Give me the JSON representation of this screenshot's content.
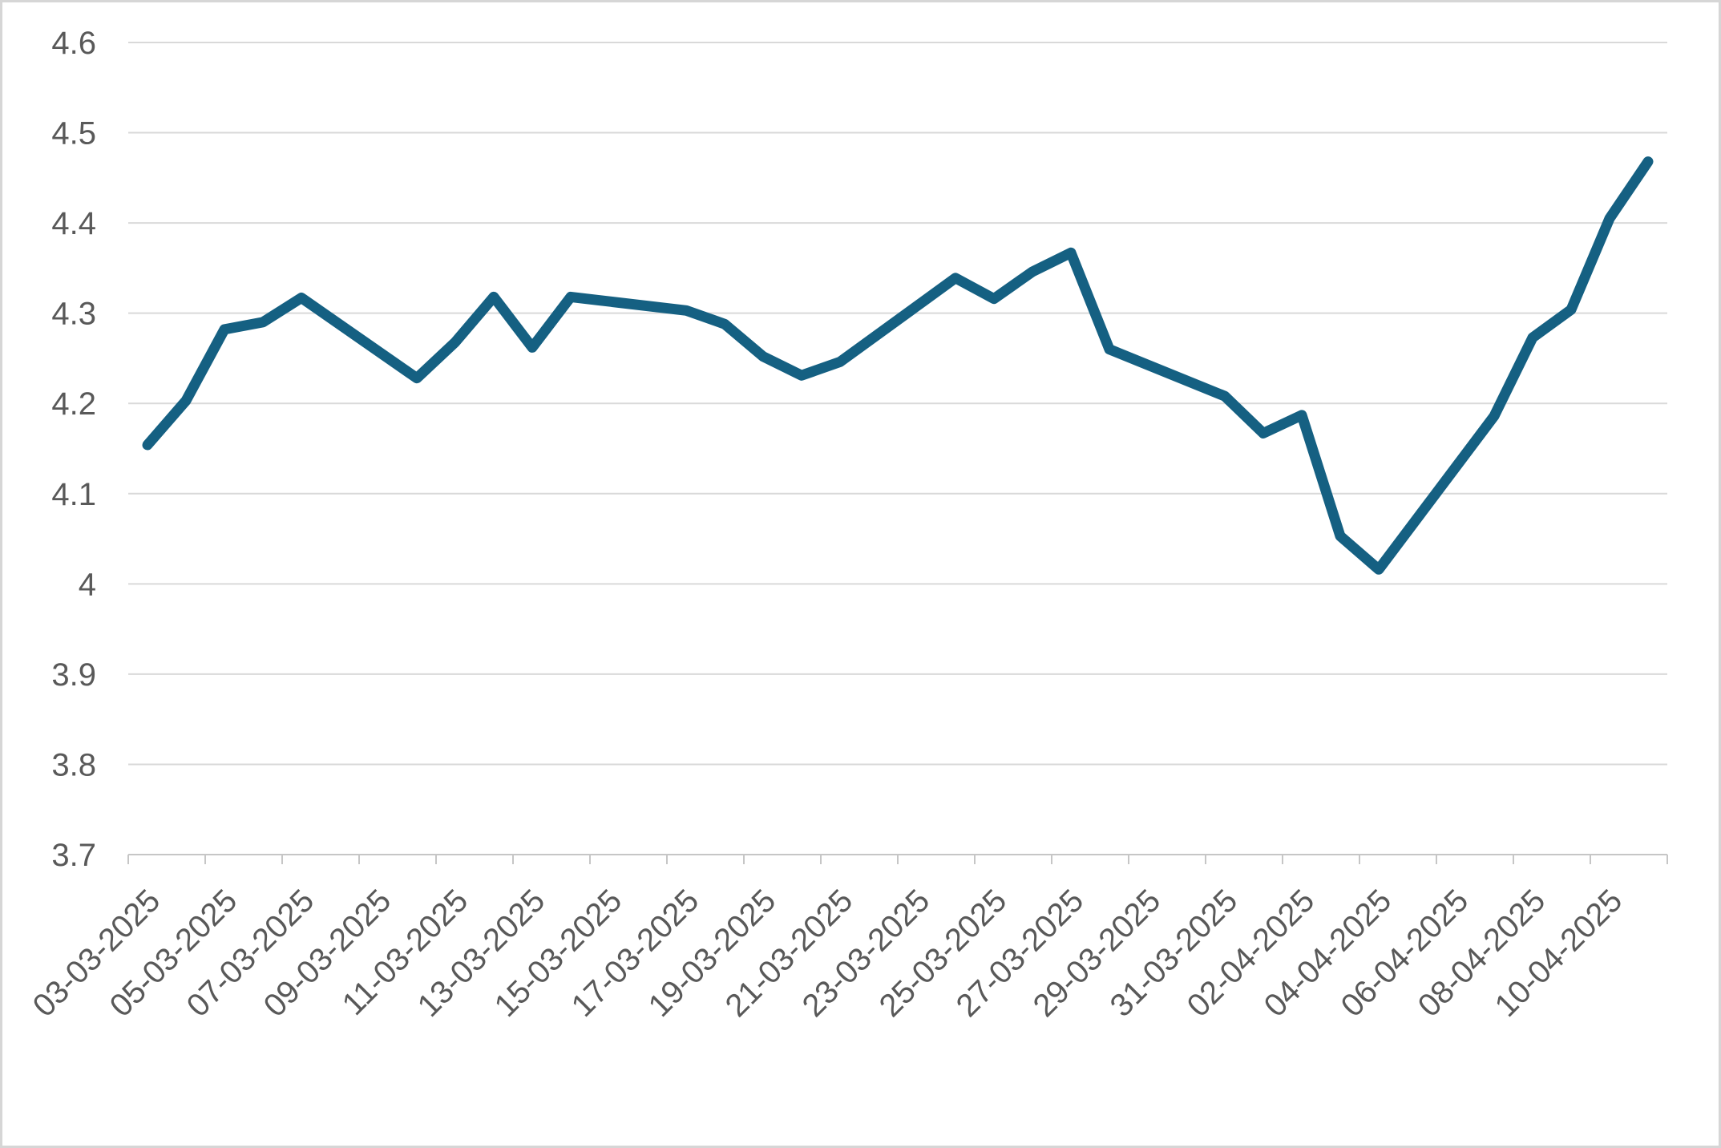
{
  "chart_data": {
    "type": "line",
    "title": "",
    "xlabel": "",
    "ylabel": "",
    "x": [
      "03-03-2025",
      "04-03-2025",
      "05-03-2025",
      "06-03-2025",
      "07-03-2025",
      "10-03-2025",
      "11-03-2025",
      "12-03-2025",
      "13-03-2025",
      "14-03-2025",
      "17-03-2025",
      "18-03-2025",
      "19-03-2025",
      "20-03-2025",
      "21-03-2025",
      "24-03-2025",
      "25-03-2025",
      "26-03-2025",
      "27-03-2025",
      "28-03-2025",
      "31-03-2025",
      "01-04-2025",
      "02-04-2025",
      "03-04-2025",
      "04-04-2025",
      "07-04-2025",
      "08-04-2025",
      "09-04-2025",
      "10-04-2025",
      "11-04-2025"
    ],
    "series": [
      {
        "name": "value",
        "values": [
          4.154,
          4.203,
          4.282,
          4.29,
          4.317,
          4.228,
          4.268,
          4.318,
          4.262,
          4.318,
          4.303,
          4.288,
          4.252,
          4.231,
          4.246,
          4.339,
          4.316,
          4.346,
          4.367,
          4.26,
          4.208,
          4.167,
          4.187,
          4.053,
          4.016,
          4.186,
          4.273,
          4.304,
          4.405,
          4.468
        ]
      }
    ],
    "x_axis_tick_labels": [
      "03-03-2025",
      "05-03-2025",
      "07-03-2025",
      "09-03-2025",
      "11-03-2025",
      "13-03-2025",
      "15-03-2025",
      "17-03-2025",
      "19-03-2025",
      "21-03-2025",
      "23-03-2025",
      "25-03-2025",
      "27-03-2025",
      "29-03-2025",
      "31-03-2025",
      "02-04-2025",
      "04-04-2025",
      "06-04-2025",
      "08-04-2025",
      "10-04-2025"
    ],
    "y_axis_tick_labels": [
      "4.6",
      "4.5",
      "4.4",
      "4.3",
      "4.2",
      "4.1",
      "4",
      "3.9",
      "3.8",
      "3.7"
    ],
    "x_axis_start_date": "03-03-2025",
    "x_axis_total_days": 40,
    "x_label_every_days": 2,
    "ylim": [
      3.7,
      4.6
    ],
    "y_step": 0.1,
    "grid": "horizontal-on",
    "legend": "none",
    "x_label_rotation_deg": -45,
    "colors": {
      "series_line": "#156082",
      "gridline": "#d9d9d9",
      "axis_line": "#c6c6c6",
      "tick_mark": "#c6c6c6",
      "axis_label_text": "#595959",
      "background": "#ffffff",
      "frame_border": "#d6d6d6"
    }
  }
}
